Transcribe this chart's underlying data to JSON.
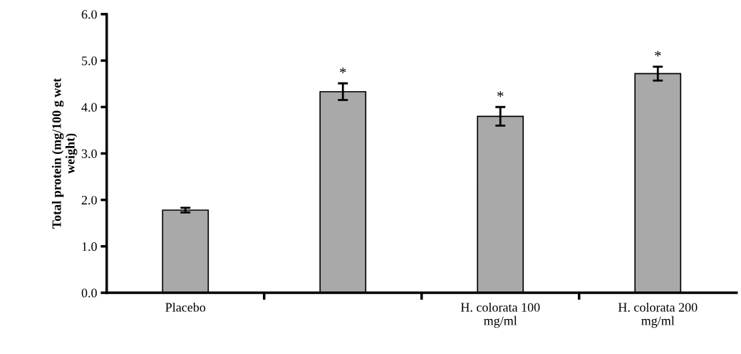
{
  "chart_data": {
    "type": "bar",
    "ylabel": "Total protein (mg/100 g wet\nweight)",
    "categories": [
      "Placebo",
      null,
      "H. colorata 100\nmg/ml",
      "H. colorata 200\nmg/ml"
    ],
    "values": [
      1.78,
      4.33,
      3.8,
      4.72
    ],
    "errors": [
      0.05,
      0.18,
      0.2,
      0.15
    ],
    "value_labels": [
      null,
      "*",
      "*",
      "*"
    ],
    "color": "#a9a9a9",
    "ylim": [
      0,
      6
    ],
    "yticks": [
      {
        "value": 0,
        "label": "0.0"
      },
      {
        "value": 1,
        "label": "1.0"
      },
      {
        "value": 2,
        "label": "2.0"
      },
      {
        "value": 3,
        "label": "3.0"
      },
      {
        "value": 4,
        "label": "4.0"
      },
      {
        "value": 5,
        "label": "5.0"
      },
      {
        "value": 6,
        "label": "6.0"
      }
    ],
    "grid": false,
    "legend": false
  }
}
